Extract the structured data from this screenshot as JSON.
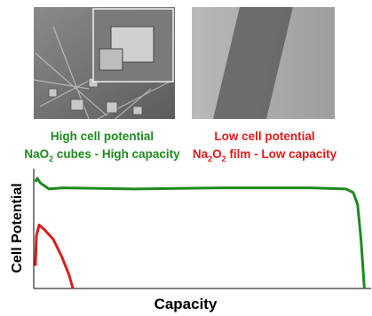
{
  "chart_data": {
    "type": "line",
    "xlabel": "Capacity",
    "ylabel": "Cell Potential",
    "xlim": [
      0,
      100
    ],
    "ylim": [
      0,
      100
    ],
    "series": [
      {
        "color": "#1e8a1e",
        "x": [
          0.5,
          1,
          2,
          4.5,
          8.5,
          29.5,
          56,
          82,
          92.6,
          94.7,
          96,
          97,
          98
        ],
        "values": [
          89,
          92,
          88,
          83,
          84,
          83,
          84,
          84,
          83,
          80,
          70,
          41,
          0
        ]
      },
      {
        "color": "#dd1c1c",
        "x": [
          0.5,
          0.8,
          1.6,
          3.2,
          5.8,
          8.4,
          10.5,
          11.6
        ],
        "values": [
          19,
          44,
          53,
          49,
          41,
          26,
          11,
          0
        ]
      }
    ],
    "annotations": [
      {
        "color": "#1e8a1e",
        "line1": "High cell potential",
        "line2": [
          "NaO",
          "2",
          " cubes - High capacity"
        ]
      },
      {
        "color": "#dd1c1c",
        "line1": "Low cell potential",
        "line2": [
          "Na",
          "2",
          "O",
          "2",
          " film - Low capacity"
        ]
      }
    ]
  }
}
